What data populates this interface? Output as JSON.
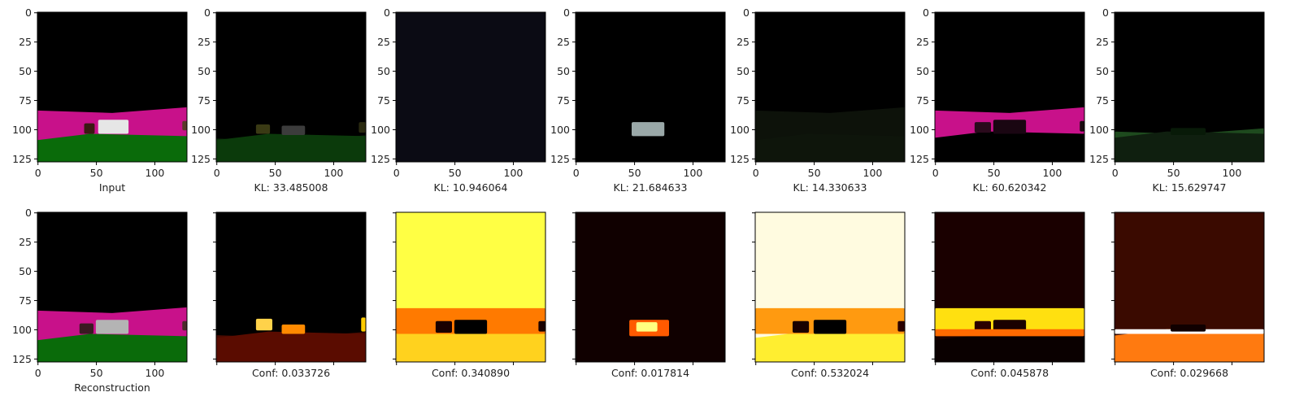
{
  "chart_data": {
    "type": "image-grid",
    "image_size": 128,
    "axis_ticks": [
      0,
      50,
      100
    ],
    "y_axis_ticks": [
      0,
      25,
      50,
      75,
      100,
      125
    ],
    "rows": [
      {
        "row": "top",
        "panels": [
          {
            "caption": "Input",
            "ground_start": 82,
            "ground_end": 130,
            "band_color": "#c8118a",
            "lower_color": "#0a6b0a",
            "lower_start": 108,
            "objects": [
              {
                "x": 40,
                "y": 95,
                "w": 9,
                "h": 9,
                "color": "#3a1a12"
              },
              {
                "x": 52,
                "y": 92,
                "w": 26,
                "h": 12,
                "color": "#e6e6e6"
              },
              {
                "x": 124,
                "y": 93,
                "w": 4,
                "h": 8,
                "color": "#5a3a2a"
              }
            ]
          },
          {
            "caption": "KL: 33.485008",
            "ground_start": 106,
            "ground_end": 130,
            "band_color": "#0a2a0a",
            "lower_color": "#0b3a0b",
            "lower_start": 108,
            "objects": [
              {
                "x": 34,
                "y": 96,
                "w": 12,
                "h": 8,
                "color": "#3a3a14"
              },
              {
                "x": 56,
                "y": 97,
                "w": 20,
                "h": 8,
                "color": "#3c3c3c"
              },
              {
                "x": 122,
                "y": 94,
                "w": 6,
                "h": 9,
                "color": "#2a2a10"
              }
            ]
          },
          {
            "caption": "KL: 10.946064",
            "ground_start": 0,
            "ground_end": 0,
            "band_color": "#0b0b14",
            "lower_color": "#0b0b14",
            "lower_start": 130,
            "objects": []
          },
          {
            "caption": "KL: 21.684633",
            "ground_start": 0,
            "ground_end": 0,
            "band_color": "#000000",
            "lower_color": "#000000",
            "lower_start": 130,
            "objects": [
              {
                "x": 48,
                "y": 94,
                "w": 28,
                "h": 12,
                "color": "#9aa8a8"
              }
            ]
          },
          {
            "caption": "KL: 14.330633",
            "ground_start": 82,
            "ground_end": 130,
            "band_color": "#0d120a",
            "lower_color": "#0e150b",
            "lower_start": 108,
            "objects": []
          },
          {
            "caption": "KL: 60.620342",
            "ground_start": 82,
            "ground_end": 130,
            "band_color": "#c8118a",
            "lower_color": "#000000",
            "lower_start": 106,
            "objects": [
              {
                "x": 34,
                "y": 94,
                "w": 14,
                "h": 9,
                "color": "#2a0a1c"
              },
              {
                "x": 50,
                "y": 92,
                "w": 28,
                "h": 12,
                "color": "#1a0612"
              },
              {
                "x": 124,
                "y": 93,
                "w": 4,
                "h": 9,
                "color": "#1a0a10"
              }
            ]
          },
          {
            "caption": "KL: 15.629747",
            "ground_start": 100,
            "ground_end": 130,
            "band_color": "#1e4a1e",
            "lower_color": "#0f1f0f",
            "lower_start": 106,
            "objects": [
              {
                "x": 48,
                "y": 99,
                "w": 30,
                "h": 6,
                "color": "#081a08"
              }
            ]
          }
        ]
      },
      {
        "row": "bottom",
        "panels": [
          {
            "caption": "Reconstruction",
            "ground_start": 82,
            "ground_end": 130,
            "band_color": "#c8118a",
            "lower_color": "#0a6b0a",
            "lower_start": 108,
            "objects": [
              {
                "x": 36,
                "y": 95,
                "w": 12,
                "h": 9,
                "color": "#3a1a22"
              },
              {
                "x": 50,
                "y": 92,
                "w": 28,
                "h": 12,
                "color": "#b4b4b4"
              },
              {
                "x": 124,
                "y": 93,
                "w": 4,
                "h": 8,
                "color": "#4a2a2a"
              }
            ]
          },
          {
            "caption": "Conf: 0.033726",
            "ground_start": 103,
            "ground_end": 130,
            "band_color": "#4a0a00",
            "lower_color": "#5a0c00",
            "lower_start": 106,
            "objects": [
              {
                "x": 34,
                "y": 91,
                "w": 14,
                "h": 10,
                "color": "#ffd24a"
              },
              {
                "x": 56,
                "y": 96,
                "w": 20,
                "h": 8,
                "color": "#ff8a00"
              },
              {
                "x": 124,
                "y": 90,
                "w": 4,
                "h": 12,
                "color": "#ffcc00"
              }
            ]
          },
          {
            "caption": "Conf: 0.340890",
            "ground_start": 0,
            "ground_end": 130,
            "band_color": "#ffff44",
            "lower_color": "#ffd21e",
            "lower_start": 100,
            "objects": [
              {
                "x": 0,
                "y": 82,
                "w": 128,
                "h": 22,
                "color": "#ff7a00"
              },
              {
                "x": 34,
                "y": 93,
                "w": 14,
                "h": 10,
                "color": "#1a0000"
              },
              {
                "x": 50,
                "y": 92,
                "w": 28,
                "h": 12,
                "color": "#000000"
              },
              {
                "x": 122,
                "y": 93,
                "w": 6,
                "h": 9,
                "color": "#1a0000"
              }
            ]
          },
          {
            "caption": "Conf: 0.017814",
            "ground_start": 0,
            "ground_end": 0,
            "band_color": "#100000",
            "lower_color": "#100000",
            "lower_start": 130,
            "objects": [
              {
                "x": 46,
                "y": 92,
                "w": 34,
                "h": 14,
                "color": "#ff5a00"
              },
              {
                "x": 52,
                "y": 94,
                "w": 18,
                "h": 8,
                "color": "#ffff80"
              }
            ]
          },
          {
            "caption": "Conf: 0.532024",
            "ground_start": 0,
            "ground_end": 130,
            "band_color": "#fffbe0",
            "lower_color": "#ffee30",
            "lower_start": 106,
            "objects": [
              {
                "x": 0,
                "y": 82,
                "w": 128,
                "h": 22,
                "color": "#ff9a10"
              },
              {
                "x": 32,
                "y": 93,
                "w": 14,
                "h": 10,
                "color": "#1a0000"
              },
              {
                "x": 50,
                "y": 92,
                "w": 28,
                "h": 12,
                "color": "#000000"
              },
              {
                "x": 122,
                "y": 93,
                "w": 6,
                "h": 9,
                "color": "#2a0000"
              }
            ]
          },
          {
            "caption": "Conf: 0.045878",
            "ground_start": 0,
            "ground_end": 130,
            "band_color": "#1a0000",
            "lower_color": "#0a0000",
            "lower_start": 108,
            "objects": [
              {
                "x": 0,
                "y": 82,
                "w": 128,
                "h": 22,
                "color": "#ffe010"
              },
              {
                "x": 34,
                "y": 93,
                "w": 14,
                "h": 10,
                "color": "#2a0000"
              },
              {
                "x": 50,
                "y": 92,
                "w": 28,
                "h": 12,
                "color": "#1a0000"
              },
              {
                "x": 0,
                "y": 100,
                "w": 128,
                "h": 6,
                "color": "#ff6a00"
              }
            ]
          },
          {
            "caption": "Conf: 0.029668",
            "ground_start": 0,
            "ground_end": 130,
            "band_color": "#3a0a00",
            "lower_color": "#ff7a10",
            "lower_start": 104,
            "objects": [
              {
                "x": 0,
                "y": 100,
                "w": 128,
                "h": 4,
                "color": "#ffffff"
              },
              {
                "x": 48,
                "y": 96,
                "w": 30,
                "h": 6,
                "color": "#100000"
              }
            ]
          }
        ]
      }
    ]
  }
}
